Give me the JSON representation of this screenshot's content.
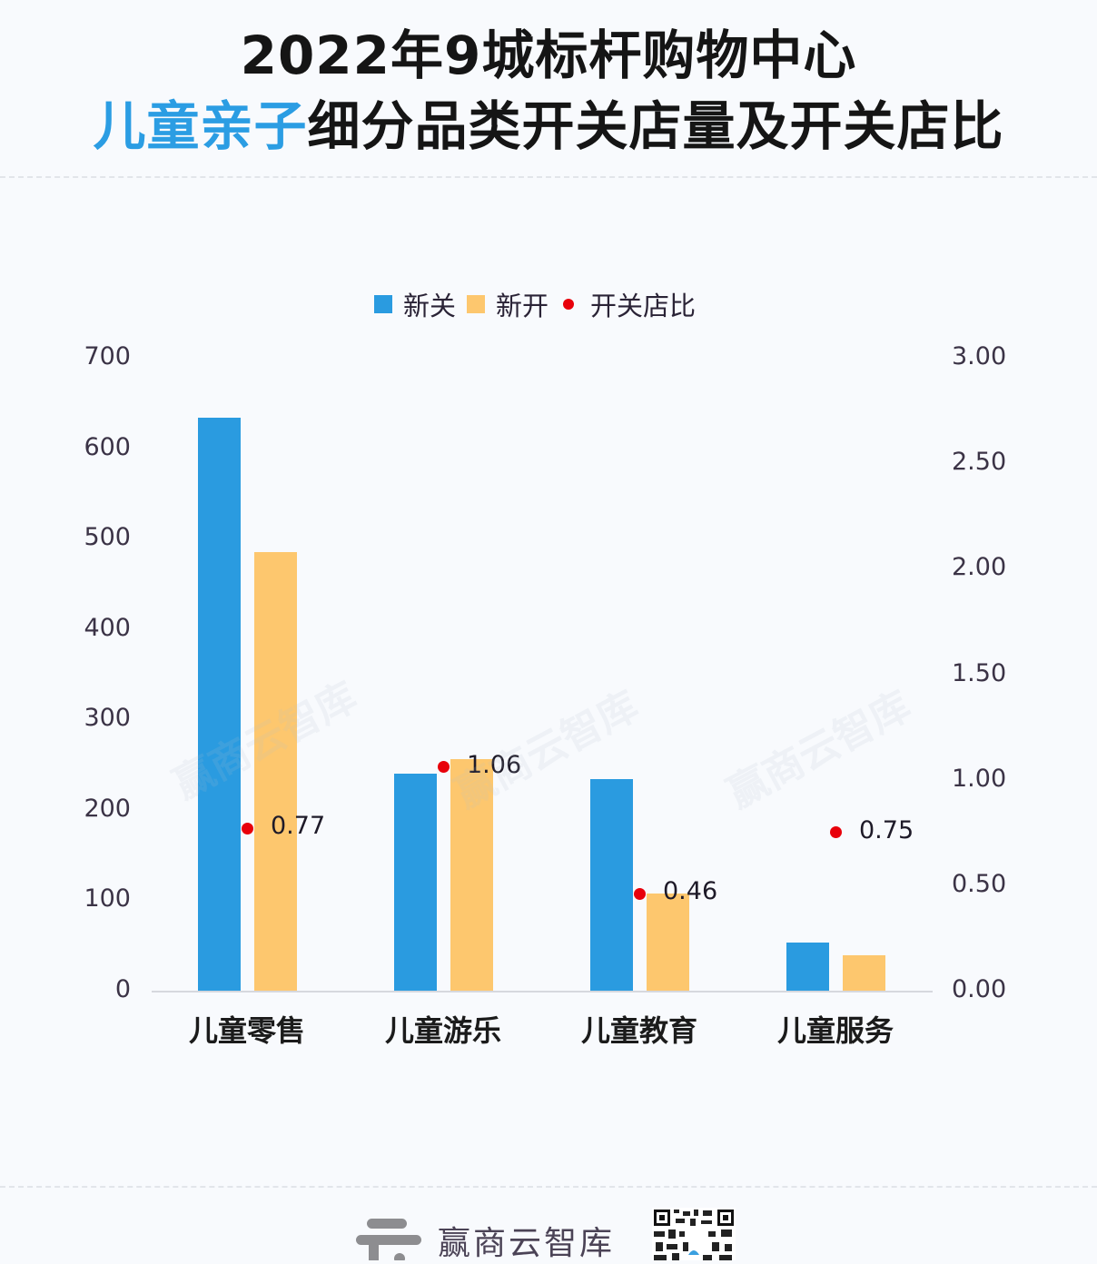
{
  "title": {
    "line1": "2022年9城标杆购物中心",
    "line2_highlight": "儿童亲子",
    "line2_rest": "细分品类开关店量及开关店比"
  },
  "legend": [
    {
      "label": "新关",
      "color": "#2a9be0",
      "shape": "square"
    },
    {
      "label": "新开",
      "color": "#fdc76e",
      "shape": "square"
    },
    {
      "label": "开关店比",
      "color": "#e8000b",
      "shape": "dot"
    }
  ],
  "watermark_text": "赢商云智库",
  "footer": {
    "brand": "赢商云智库",
    "logo_icon": "cloud-logo-icon",
    "qr_icon": "qr-code-icon"
  },
  "chart_data": {
    "type": "bar",
    "title": "2022年9城标杆购物中心儿童亲子细分品类开关店量及开关店比",
    "categories": [
      "儿童零售",
      "儿童游乐",
      "儿童教育",
      "儿童服务"
    ],
    "series": [
      {
        "name": "新关",
        "type": "bar",
        "axis": "left",
        "color": "#2a9be0",
        "values": [
          634,
          240,
          234,
          53
        ]
      },
      {
        "name": "新开",
        "type": "bar",
        "axis": "left",
        "color": "#fdc76e",
        "values": [
          485,
          256,
          107,
          39
        ]
      },
      {
        "name": "开关店比",
        "type": "scatter",
        "axis": "right",
        "color": "#e8000b",
        "values": [
          0.77,
          1.06,
          0.46,
          0.75
        ],
        "labels": [
          "0.77",
          "1.06",
          "0.46",
          "0.75"
        ]
      }
    ],
    "y_left": {
      "ylim": [
        0,
        700
      ],
      "ticks": [
        "0",
        "100",
        "200",
        "300",
        "400",
        "500",
        "600",
        "700"
      ]
    },
    "y_right": {
      "ylim": [
        0,
        3
      ],
      "ticks": [
        "0.00",
        "0.50",
        "1.00",
        "1.50",
        "2.00",
        "2.50",
        "3.00"
      ]
    },
    "xlabel": "",
    "ylabel": "",
    "grid": false,
    "legend_position": "top"
  }
}
